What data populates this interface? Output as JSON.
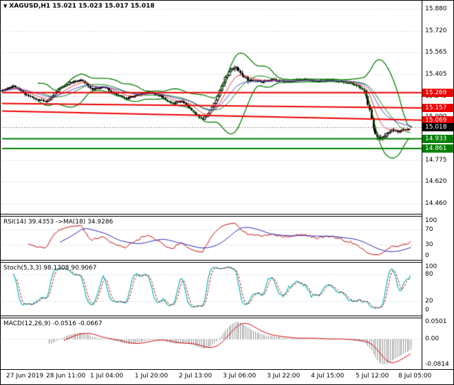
{
  "header": {
    "menu_icon": "▼",
    "title": "XAGUSD,H1 15.021 15.023 15.017 15.018"
  },
  "colors": {
    "grid": "#c6c6c6",
    "candle_up": "#ffffff",
    "candle_down": "#000000",
    "candle_outline": "#000000",
    "band": "#007f00",
    "ma_fast": "#dd3333",
    "ma_slow": "#4444cc",
    "level_red": "#ee0000",
    "level_green": "#008000",
    "rsi": "#c00000",
    "rsi_ma": "#2222bb",
    "stoch_k": "#00b5b5",
    "stoch_d": "#d00000",
    "macd_hist": "#909090",
    "macd_signal": "#cc0000",
    "current_price_line": "#888888"
  },
  "chart_data": [
    {
      "type": "candlestick",
      "symbol": "XAGUSD",
      "timeframe": "H1",
      "title": "XAGUSD,H1 15.021 15.023 15.017 15.018",
      "open": "15.021",
      "high": "15.023",
      "low": "15.017",
      "close": "15.018",
      "bar_count": 219,
      "last_candle": [
        15.021,
        15.023,
        15.017,
        15.018
      ],
      "current_price": 15.018,
      "y_range": [
        14.385,
        15.94
      ],
      "y_ticks": [
        15.88,
        15.72,
        15.565,
        15.405,
        15.245,
        15.09,
        14.93,
        14.775,
        14.62,
        14.46
      ],
      "y_tick_labels": [
        "15.880",
        "15.720",
        "15.565",
        "15.405",
        "15.245",
        "15.090",
        "14.930",
        "14.775",
        "14.620",
        "14.460"
      ],
      "x_labels": [
        "27 Jun 2019",
        "28 Jun 11:00",
        "1 Jul 04:00",
        "1 Jul 20:00",
        "2 Jul 13:00",
        "3 Jul 06:00",
        "3 Jul 22:00",
        "4 Jul 15:00",
        "5 Jul 12:00",
        "8 Jul 05:00"
      ],
      "close_anchors": [
        [
          0,
          15.285
        ],
        [
          6,
          15.315
        ],
        [
          12,
          15.26
        ],
        [
          18,
          15.22
        ],
        [
          24,
          15.205
        ],
        [
          30,
          15.295
        ],
        [
          36,
          15.34
        ],
        [
          42,
          15.36
        ],
        [
          48,
          15.295
        ],
        [
          54,
          15.31
        ],
        [
          60,
          15.26
        ],
        [
          66,
          15.225
        ],
        [
          72,
          15.25
        ],
        [
          78,
          15.275
        ],
        [
          84,
          15.245
        ],
        [
          90,
          15.19
        ],
        [
          96,
          15.21
        ],
        [
          100,
          15.155
        ],
        [
          104,
          15.1
        ],
        [
          107,
          15.075
        ],
        [
          110,
          15.12
        ],
        [
          113,
          15.19
        ],
        [
          116,
          15.28
        ],
        [
          119,
          15.38
        ],
        [
          121,
          15.43
        ],
        [
          124,
          15.46
        ],
        [
          127,
          15.41
        ],
        [
          131,
          15.36
        ],
        [
          138,
          15.35
        ],
        [
          144,
          15.365
        ],
        [
          150,
          15.35
        ],
        [
          156,
          15.36
        ],
        [
          162,
          15.365
        ],
        [
          168,
          15.35
        ],
        [
          174,
          15.36
        ],
        [
          180,
          15.35
        ],
        [
          185,
          15.34
        ],
        [
          190,
          15.315
        ],
        [
          193,
          15.28
        ],
        [
          196,
          15.15
        ],
        [
          198,
          15.0
        ],
        [
          200,
          14.94
        ],
        [
          202,
          14.93
        ],
        [
          205,
          14.97
        ],
        [
          208,
          15.0
        ],
        [
          211,
          14.985
        ],
        [
          214,
          15.005
        ],
        [
          216,
          14.995
        ],
        [
          218,
          15.018
        ]
      ],
      "overlays": {
        "bollinger_period": 20,
        "bollinger_deviation": 2,
        "ma_fast_period": 10,
        "ma_slow_period": 21
      },
      "h_levels": [
        {
          "value": 15.269,
          "color": "#ee0000",
          "width": 2
        },
        {
          "value": 14.933,
          "color": "#008000",
          "width": 2
        },
        {
          "value": 14.861,
          "color": "#008000",
          "width": 2
        }
      ],
      "trendlines": [
        {
          "from": [
            0,
            15.19
          ],
          "to": [
            218,
            15.157
          ],
          "color": "#ee0000",
          "width": 2
        },
        {
          "from": [
            0,
            15.135
          ],
          "to": [
            218,
            15.069
          ],
          "color": "#ee0000",
          "width": 2
        }
      ],
      "price_labels": [
        {
          "text": "15.269",
          "bg": "#ee0000",
          "value": 15.269
        },
        {
          "text": "15.157",
          "bg": "#ee0000",
          "value": 15.157
        },
        {
          "text": "15.069",
          "bg": "#ee0000",
          "value": 15.069
        },
        {
          "text": "15.018",
          "bg": "#000000",
          "value": 15.018
        },
        {
          "text": "14.933",
          "bg": "#008000",
          "value": 14.933
        },
        {
          "text": "14.861",
          "bg": "#008000",
          "value": 14.861
        }
      ]
    },
    {
      "type": "line",
      "name": "RSI",
      "title": "RSI(14) 39.4353 ->MA(18) 34.9286",
      "period": 14,
      "ma_period": 18,
      "last_value": 39.4353,
      "ma_last_value": 34.9286,
      "range": [
        0,
        100
      ],
      "levels": [
        70,
        30
      ],
      "y_tick_values": [
        100,
        70,
        30,
        0
      ],
      "y_tick_labels": [
        "100",
        "70",
        "30",
        "0"
      ]
    },
    {
      "type": "line",
      "name": "Stochastic",
      "title": "Stoch(5,3,3) 98.1308 90.9067",
      "k_period": 5,
      "d_period": 3,
      "slowing": 3,
      "last_k": 98.1308,
      "last_d": 90.9067,
      "range": [
        0,
        100
      ],
      "levels": [
        80,
        20
      ],
      "y_tick_values": [
        100,
        80,
        20,
        0
      ],
      "y_tick_labels": [
        "100",
        "80",
        "20",
        "0"
      ]
    },
    {
      "type": "macd",
      "name": "MACD",
      "title": "MACD(12,26,9) -0.0516 -0.0667",
      "fast": 12,
      "slow": 26,
      "signal": 9,
      "last_macd": -0.0516,
      "last_signal": -0.0667,
      "y_tick_values": [
        0.0501,
        0,
        -0.0814
      ],
      "y_tick_labels": [
        "0.0501",
        "0.00",
        "-0.0814"
      ]
    }
  ]
}
